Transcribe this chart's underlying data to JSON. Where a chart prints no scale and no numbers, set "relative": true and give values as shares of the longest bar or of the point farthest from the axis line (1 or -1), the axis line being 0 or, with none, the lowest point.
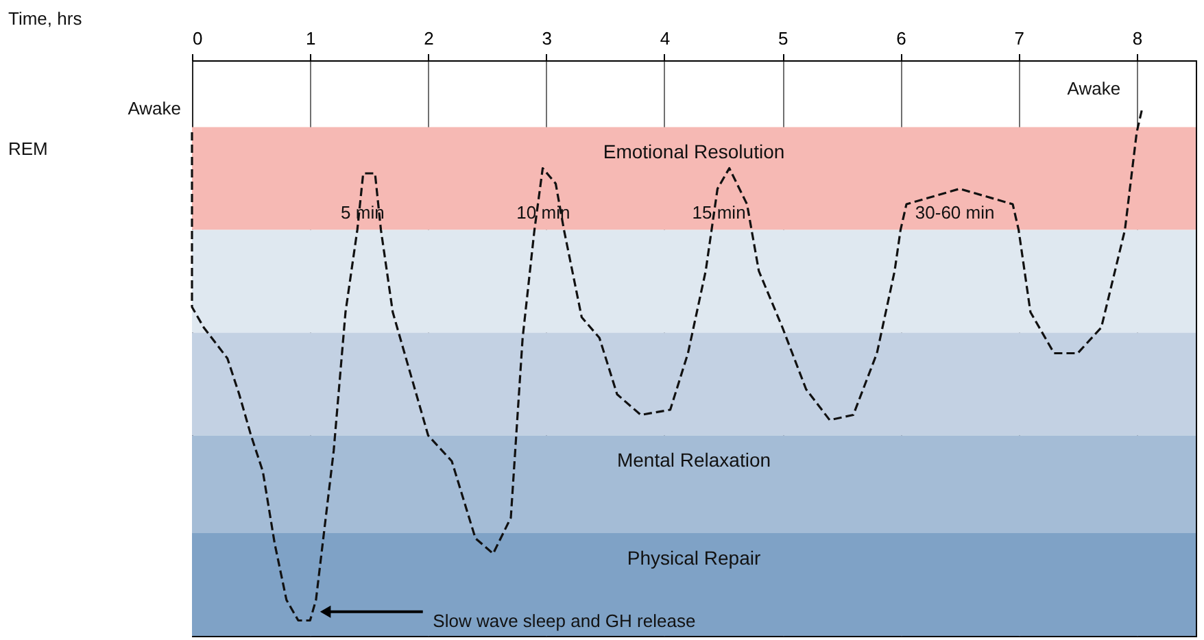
{
  "chart_data": {
    "type": "line",
    "relative": true,
    "xlim": [
      0,
      8.5
    ],
    "xticks": [
      0,
      1,
      2,
      3,
      4,
      5,
      6,
      7,
      8
    ],
    "grid": "x",
    "line_style": "dashed",
    "bands": [
      {
        "axis": "y",
        "from": 0.76,
        "to": 0.96,
        "label": "Emotional Resolution",
        "color": "#f6b9b4"
      },
      {
        "axis": "y",
        "from": 0.56,
        "to": 0.76,
        "label": null,
        "color": "#dfe8f0"
      },
      {
        "axis": "y",
        "from": 0.36,
        "to": 0.56,
        "label": null,
        "color": "#c3d1e3"
      },
      {
        "axis": "y",
        "from": 0.17,
        "to": 0.36,
        "label": "Mental Relaxation",
        "color": "#a4bcd6"
      },
      {
        "axis": "y",
        "from": -0.03,
        "to": 0.17,
        "label": "Physical Repair",
        "color": "#7fa2c6"
      }
    ],
    "x": [
      0,
      0,
      0.1,
      0.3,
      0.4,
      0.5,
      0.6,
      0.7,
      0.8,
      0.9,
      1.0,
      1.05,
      1.2,
      1.3,
      1.4,
      1.45,
      1.55,
      1.6,
      1.7,
      1.9,
      2.0,
      2.2,
      2.4,
      2.55,
      2.7,
      2.8,
      2.9,
      2.97,
      3.08,
      3.15,
      3.3,
      3.45,
      3.6,
      3.8,
      4.05,
      4.2,
      4.35,
      4.45,
      4.55,
      4.7,
      4.8,
      5.0,
      5.2,
      5.4,
      5.6,
      5.8,
      5.95,
      6.0,
      6.05,
      6.5,
      6.95,
      7.0,
      7.1,
      7.3,
      7.5,
      7.7,
      7.9,
      8.0,
      8.05
    ],
    "series": [
      {
        "color": "#111111",
        "values": [
          0.95,
          0.61,
          0.57,
          0.51,
          0.44,
          0.36,
          0.29,
          0.15,
          0.04,
          0,
          0,
          0.04,
          0.33,
          0.6,
          0.76,
          0.87,
          0.87,
          0.76,
          0.6,
          0.44,
          0.36,
          0.31,
          0.16,
          0.13,
          0.2,
          0.55,
          0.76,
          0.88,
          0.85,
          0.76,
          0.59,
          0.55,
          0.44,
          0.4,
          0.41,
          0.52,
          0.68,
          0.84,
          0.88,
          0.81,
          0.68,
          0.57,
          0.45,
          0.39,
          0.4,
          0.52,
          0.68,
          0.76,
          0.81,
          0.84,
          0.81,
          0.76,
          0.6,
          0.52,
          0.52,
          0.57,
          0.76,
          0.95,
          1
        ]
      }
    ],
    "annotations": [
      "Awake",
      "REM",
      "5 min",
      "10 min",
      "15 min",
      "30-60 min",
      "Awake",
      "Slow wave sleep and GH release",
      "Time, hrs"
    ]
  }
}
